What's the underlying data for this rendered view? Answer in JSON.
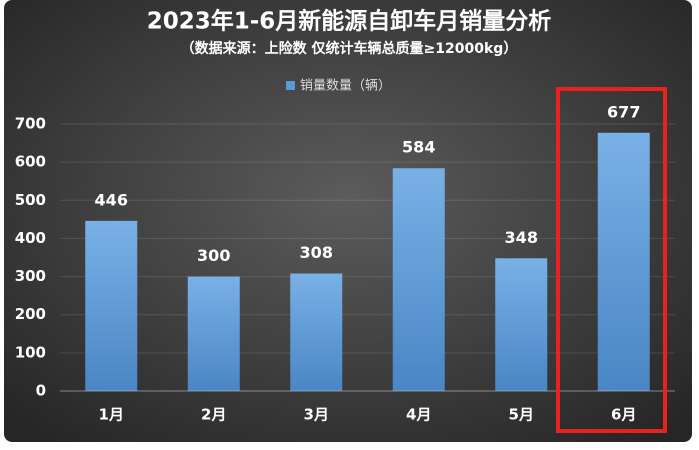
{
  "chart_data": {
    "type": "bar",
    "title": "2023年1-6月新能源自卸车月销量分析",
    "subtitle": "（数据来源：上险数 仅统计车辆总质量≥12000kg）",
    "categories": [
      "1月",
      "2月",
      "3月",
      "4月",
      "5月",
      "6月"
    ],
    "series": [
      {
        "name": "销量数量（辆）",
        "color": "#5b9bd5",
        "values": [
          446,
          300,
          308,
          584,
          348,
          677
        ]
      }
    ],
    "ylim": [
      0,
      700
    ],
    "yticks": [
      0,
      100,
      200,
      300,
      400,
      500,
      600,
      700
    ],
    "grid": true,
    "legend": "top"
  }
}
